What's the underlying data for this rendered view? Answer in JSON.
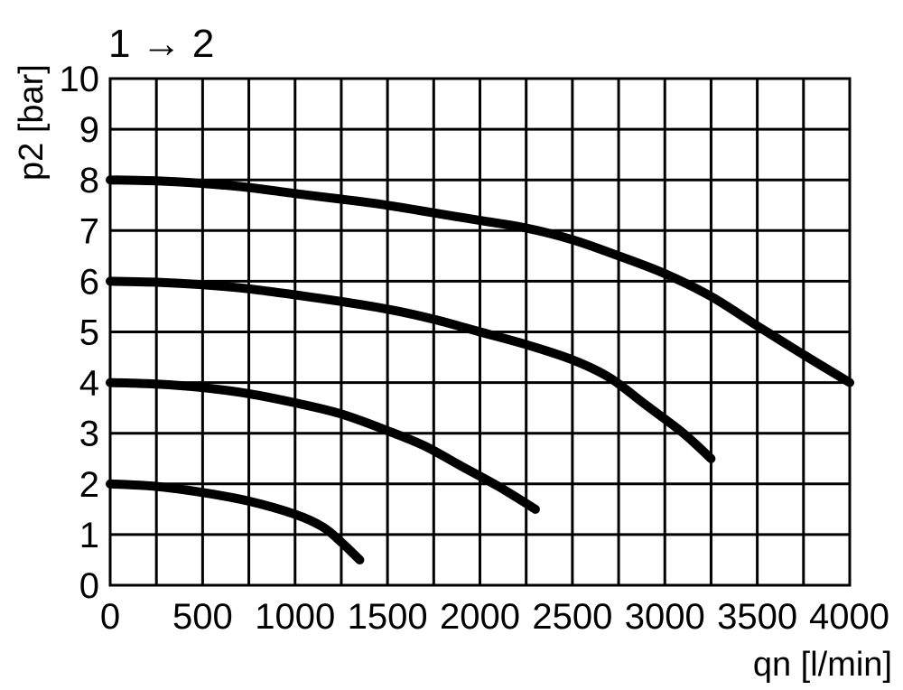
{
  "chart_data": {
    "type": "line",
    "title": "1 → 2",
    "xlabel": "qn [l/min]",
    "ylabel": "p2 [bar]",
    "xlim": [
      0,
      4000
    ],
    "ylim": [
      0,
      10
    ],
    "x_ticks": [
      0,
      500,
      1000,
      1500,
      2000,
      2500,
      3000,
      3500,
      4000
    ],
    "y_ticks": [
      0,
      1,
      2,
      3,
      4,
      5,
      6,
      7,
      8,
      9,
      10
    ],
    "grid": true,
    "line_color": "#000000",
    "series": [
      {
        "points": [
          [
            0,
            8.0
          ],
          [
            250,
            7.98
          ],
          [
            500,
            7.93
          ],
          [
            750,
            7.85
          ],
          [
            1000,
            7.73
          ],
          [
            1250,
            7.62
          ],
          [
            1500,
            7.5
          ],
          [
            1750,
            7.35
          ],
          [
            2000,
            7.2
          ],
          [
            2250,
            7.05
          ],
          [
            2500,
            6.82
          ],
          [
            2750,
            6.5
          ],
          [
            3000,
            6.15
          ],
          [
            3250,
            5.7
          ],
          [
            3500,
            5.12
          ],
          [
            3750,
            4.55
          ],
          [
            4000,
            4.0
          ]
        ]
      },
      {
        "points": [
          [
            0,
            6.0
          ],
          [
            250,
            5.98
          ],
          [
            500,
            5.93
          ],
          [
            750,
            5.85
          ],
          [
            1000,
            5.73
          ],
          [
            1250,
            5.6
          ],
          [
            1500,
            5.45
          ],
          [
            1750,
            5.25
          ],
          [
            2000,
            5.0
          ],
          [
            2250,
            4.75
          ],
          [
            2500,
            4.45
          ],
          [
            2700,
            4.1
          ],
          [
            2900,
            3.55
          ],
          [
            3100,
            3.0
          ],
          [
            3250,
            2.5
          ]
        ]
      },
      {
        "points": [
          [
            0,
            4.0
          ],
          [
            250,
            3.97
          ],
          [
            500,
            3.9
          ],
          [
            750,
            3.78
          ],
          [
            1000,
            3.6
          ],
          [
            1250,
            3.38
          ],
          [
            1500,
            3.05
          ],
          [
            1700,
            2.75
          ],
          [
            1900,
            2.35
          ],
          [
            2100,
            1.95
          ],
          [
            2300,
            1.5
          ]
        ]
      },
      {
        "points": [
          [
            0,
            2.0
          ],
          [
            250,
            1.95
          ],
          [
            500,
            1.83
          ],
          [
            750,
            1.66
          ],
          [
            1000,
            1.4
          ],
          [
            1150,
            1.15
          ],
          [
            1250,
            0.85
          ],
          [
            1350,
            0.5
          ]
        ]
      }
    ]
  }
}
